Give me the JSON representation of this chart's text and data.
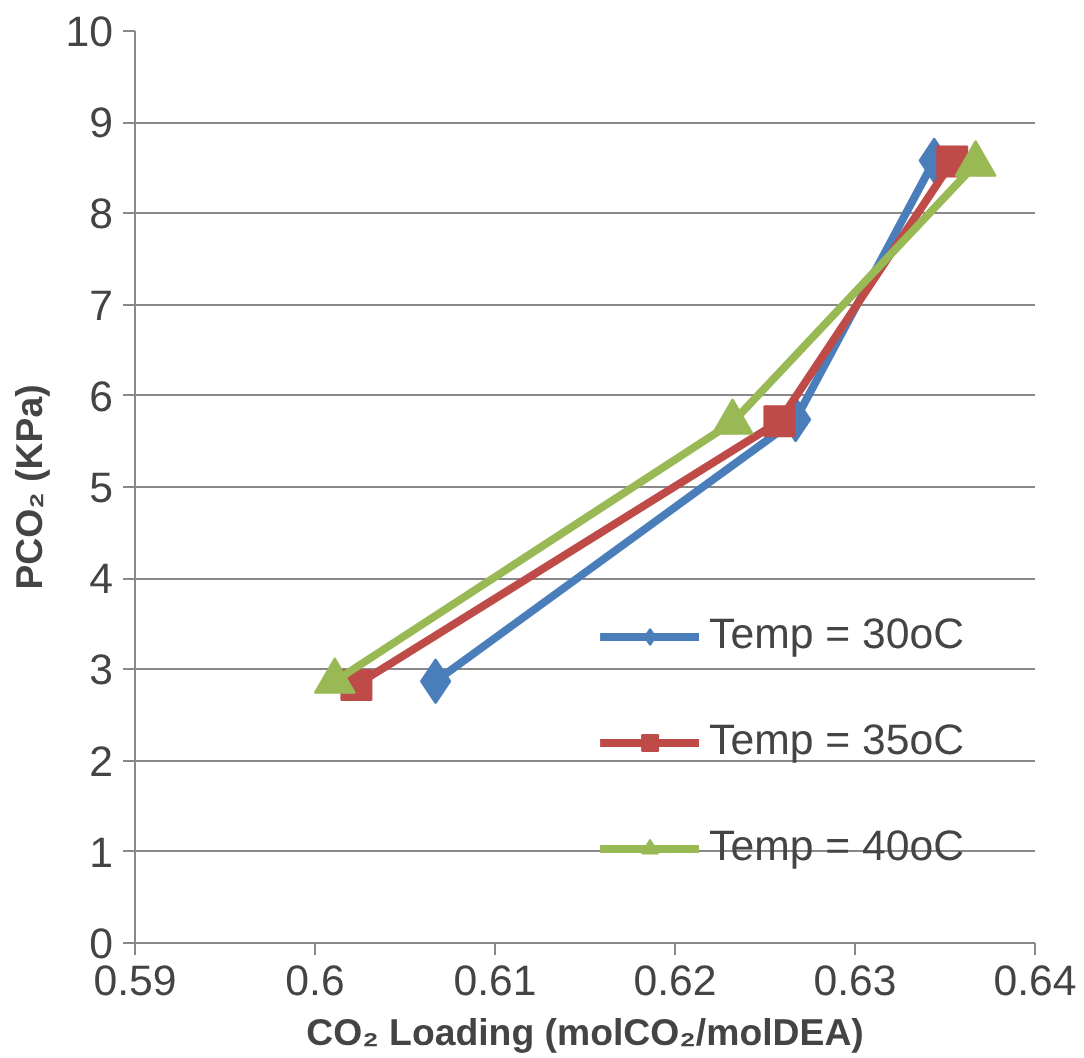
{
  "chart_data": {
    "type": "line",
    "xlabel": "CO₂ Loading (molCO₂/molDEA)",
    "ylabel": "PCO₂ (KPa)",
    "xlim": [
      0.59,
      0.64
    ],
    "xticks": [
      0.59,
      0.6,
      0.61,
      0.62,
      0.63,
      0.64
    ],
    "ylim": [
      0,
      10
    ],
    "yticks": [
      0,
      1,
      2,
      3,
      4,
      5,
      6,
      7,
      8,
      9,
      10
    ],
    "grid": "y",
    "legend": "bottom right",
    "line_style": "solid",
    "series": [
      {
        "name": "Temp = 30oC",
        "color": "#4a7ebb",
        "marker": "diamond",
        "x": [
          0.6067,
          0.6267,
          0.6344
        ],
        "values": [
          2.87,
          5.74,
          8.58
        ]
      },
      {
        "name": "Temp = 35oC",
        "color": "#be4b48",
        "marker": "square",
        "x": [
          0.6023,
          0.6258,
          0.6354
        ],
        "values": [
          2.83,
          5.72,
          8.57
        ]
      },
      {
        "name": "Temp = 40oC",
        "color": "#98b954",
        "marker": "triangle",
        "x": [
          0.6011,
          0.6232,
          0.6367
        ],
        "values": [
          2.87,
          5.71,
          8.54
        ]
      }
    ]
  }
}
